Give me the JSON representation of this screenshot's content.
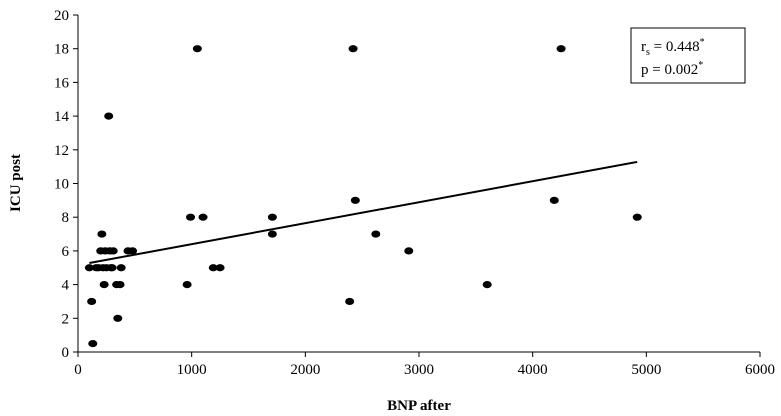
{
  "chart_data": {
    "type": "scatter",
    "xlabel": "BNP after",
    "ylabel": "ICU post",
    "xlim": [
      0,
      6000
    ],
    "ylim": [
      0,
      20
    ],
    "xticks": [
      "0",
      "1000",
      "2000",
      "3000",
      "4000",
      "5000",
      "6000"
    ],
    "yticks": [
      "0",
      "2",
      "4",
      "6",
      "8",
      "10",
      "12",
      "14",
      "16",
      "18",
      "20"
    ],
    "grid": false,
    "points": [
      {
        "x": 100,
        "y": 5
      },
      {
        "x": 120,
        "y": 3
      },
      {
        "x": 130,
        "y": 0.5
      },
      {
        "x": 160,
        "y": 5
      },
      {
        "x": 180,
        "y": 5
      },
      {
        "x": 200,
        "y": 6
      },
      {
        "x": 210,
        "y": 7
      },
      {
        "x": 220,
        "y": 5
      },
      {
        "x": 230,
        "y": 4
      },
      {
        "x": 240,
        "y": 6
      },
      {
        "x": 250,
        "y": 5
      },
      {
        "x": 270,
        "y": 14
      },
      {
        "x": 280,
        "y": 6
      },
      {
        "x": 290,
        "y": 5
      },
      {
        "x": 300,
        "y": 5
      },
      {
        "x": 310,
        "y": 6
      },
      {
        "x": 340,
        "y": 4
      },
      {
        "x": 350,
        "y": 2
      },
      {
        "x": 370,
        "y": 4
      },
      {
        "x": 380,
        "y": 5
      },
      {
        "x": 440,
        "y": 6
      },
      {
        "x": 480,
        "y": 6
      },
      {
        "x": 960,
        "y": 4
      },
      {
        "x": 990,
        "y": 8
      },
      {
        "x": 1050,
        "y": 18
      },
      {
        "x": 1100,
        "y": 8
      },
      {
        "x": 1190,
        "y": 5
      },
      {
        "x": 1250,
        "y": 5
      },
      {
        "x": 1710,
        "y": 8
      },
      {
        "x": 1710,
        "y": 7
      },
      {
        "x": 2390,
        "y": 3
      },
      {
        "x": 2420,
        "y": 18
      },
      {
        "x": 2440,
        "y": 9
      },
      {
        "x": 2620,
        "y": 7
      },
      {
        "x": 2910,
        "y": 6
      },
      {
        "x": 3600,
        "y": 4
      },
      {
        "x": 4190,
        "y": 9
      },
      {
        "x": 4250,
        "y": 18
      },
      {
        "x": 4920,
        "y": 8
      }
    ],
    "trendline": {
      "x": [
        100,
        4920
      ],
      "y": [
        5.28,
        11.28
      ]
    },
    "annotation": {
      "r_prefix": "r",
      "r_sub": "s",
      "r_value": " = 0.448",
      "r_star": "*",
      "p_value": "p = 0.002",
      "p_star": "*"
    }
  }
}
